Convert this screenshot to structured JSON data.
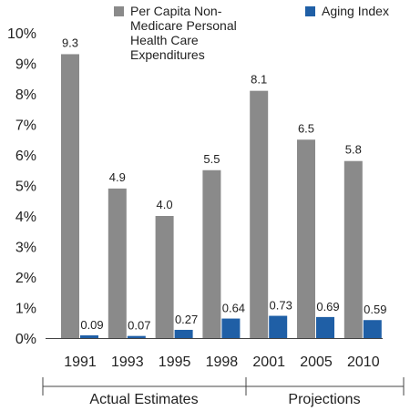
{
  "chart_data": {
    "type": "bar",
    "categories": [
      "1991",
      "1993",
      "1995",
      "1998",
      "2001",
      "2005",
      "2010"
    ],
    "series": [
      {
        "name": "Per Capita Non-Medicare Personal Health Care Expenditures",
        "legend_lines": [
          "Per Capita Non-",
          "Medicare Personal",
          "Health Care",
          "Expenditures"
        ],
        "values": [
          9.3,
          4.9,
          4.0,
          5.5,
          8.1,
          6.5,
          5.8
        ],
        "labels": [
          "9.3",
          "4.9",
          "4.0",
          "5.5",
          "8.1",
          "6.5",
          "5.8"
        ],
        "color": "#8a8a8a"
      },
      {
        "name": "Aging Index",
        "legend_lines": [
          "Aging Index"
        ],
        "values": [
          0.09,
          0.07,
          0.27,
          0.64,
          0.73,
          0.69,
          0.59
        ],
        "labels": [
          "0.09",
          "0.07",
          "0.27",
          "0.64",
          "0.73",
          "0.69",
          "0.59"
        ],
        "color": "#1f5fa6"
      }
    ],
    "yticks": [
      "0%",
      "1%",
      "2%",
      "3%",
      "4%",
      "5%",
      "6%",
      "7%",
      "8%",
      "9%",
      "10%"
    ],
    "ylim": [
      0,
      10
    ],
    "grid": false,
    "legend": "top",
    "groups": [
      {
        "label": "Actual Estimates"
      },
      {
        "label": "Projections"
      }
    ],
    "axis_color": "#444444"
  }
}
